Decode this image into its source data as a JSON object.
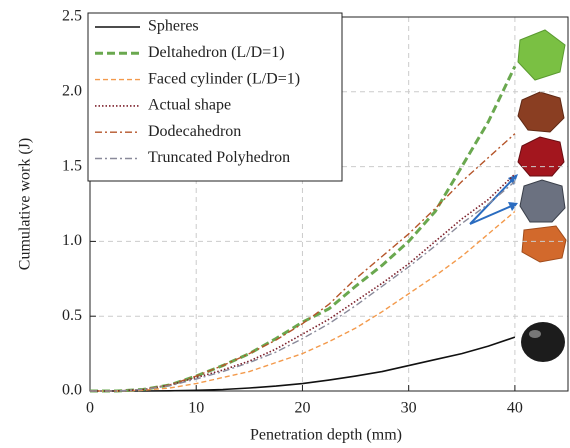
{
  "chart_data": {
    "type": "line",
    "xlabel": "Penetration depth (mm)",
    "ylabel": "Cumulative work (J)",
    "x": [
      0,
      2.5,
      5,
      7.5,
      10,
      12.5,
      15,
      17.5,
      20,
      22.5,
      25,
      27.5,
      30,
      32.5,
      35,
      37.5,
      40
    ],
    "series": [
      {
        "name": "Spheres",
        "color": "#111111",
        "style": "solid",
        "values": [
          0,
          0,
          0,
          0.001,
          0.005,
          0.01,
          0.02,
          0.033,
          0.05,
          0.073,
          0.1,
          0.13,
          0.17,
          0.21,
          0.25,
          0.3,
          0.36
        ]
      },
      {
        "name": "Deltahedron  (L/D=1)",
        "color": "#6aa84f",
        "style": "bold-dashed",
        "values": [
          0,
          0,
          0.01,
          0.04,
          0.1,
          0.17,
          0.25,
          0.35,
          0.46,
          0.55,
          0.7,
          0.84,
          1.0,
          1.2,
          1.5,
          1.8,
          2.17
        ]
      },
      {
        "name": "Faced cylinder  (L/D=1)",
        "color": "#f39a4c",
        "style": "dashed",
        "values": [
          0,
          0,
          0.005,
          0.02,
          0.05,
          0.09,
          0.13,
          0.19,
          0.25,
          0.33,
          0.42,
          0.53,
          0.65,
          0.77,
          0.9,
          1.05,
          1.2
        ]
      },
      {
        "name": "Actual shape",
        "color": "#7b1f2a",
        "style": "dotted",
        "values": [
          0,
          0,
          0.01,
          0.04,
          0.09,
          0.14,
          0.2,
          0.28,
          0.38,
          0.48,
          0.6,
          0.72,
          0.85,
          1.0,
          1.15,
          1.28,
          1.45
        ]
      },
      {
        "name": "Dodecahedron",
        "color": "#b5552a",
        "style": "dashdot",
        "values": [
          0,
          0,
          0.01,
          0.04,
          0.1,
          0.17,
          0.25,
          0.34,
          0.45,
          0.58,
          0.75,
          0.9,
          1.05,
          1.22,
          1.4,
          1.56,
          1.72
        ]
      },
      {
        "name": "Truncated Polyhedron",
        "color": "#8a8a9a",
        "style": "dashdot",
        "values": [
          0,
          0,
          0.01,
          0.035,
          0.08,
          0.13,
          0.19,
          0.26,
          0.35,
          0.45,
          0.57,
          0.7,
          0.83,
          0.97,
          1.12,
          1.25,
          1.4
        ]
      }
    ],
    "xlim": [
      0,
      45
    ],
    "xticks": [
      0,
      10,
      20,
      30,
      40
    ],
    "ylim": [
      0,
      2.5
    ],
    "yticks": [
      {
        "value": 0,
        "label": "0.0"
      },
      0.5,
      {
        "value": 1,
        "label": "1.0"
      },
      1.5,
      {
        "value": 2,
        "label": "2.0"
      },
      2.5
    ],
    "grid": true,
    "legend": "upper left"
  }
}
